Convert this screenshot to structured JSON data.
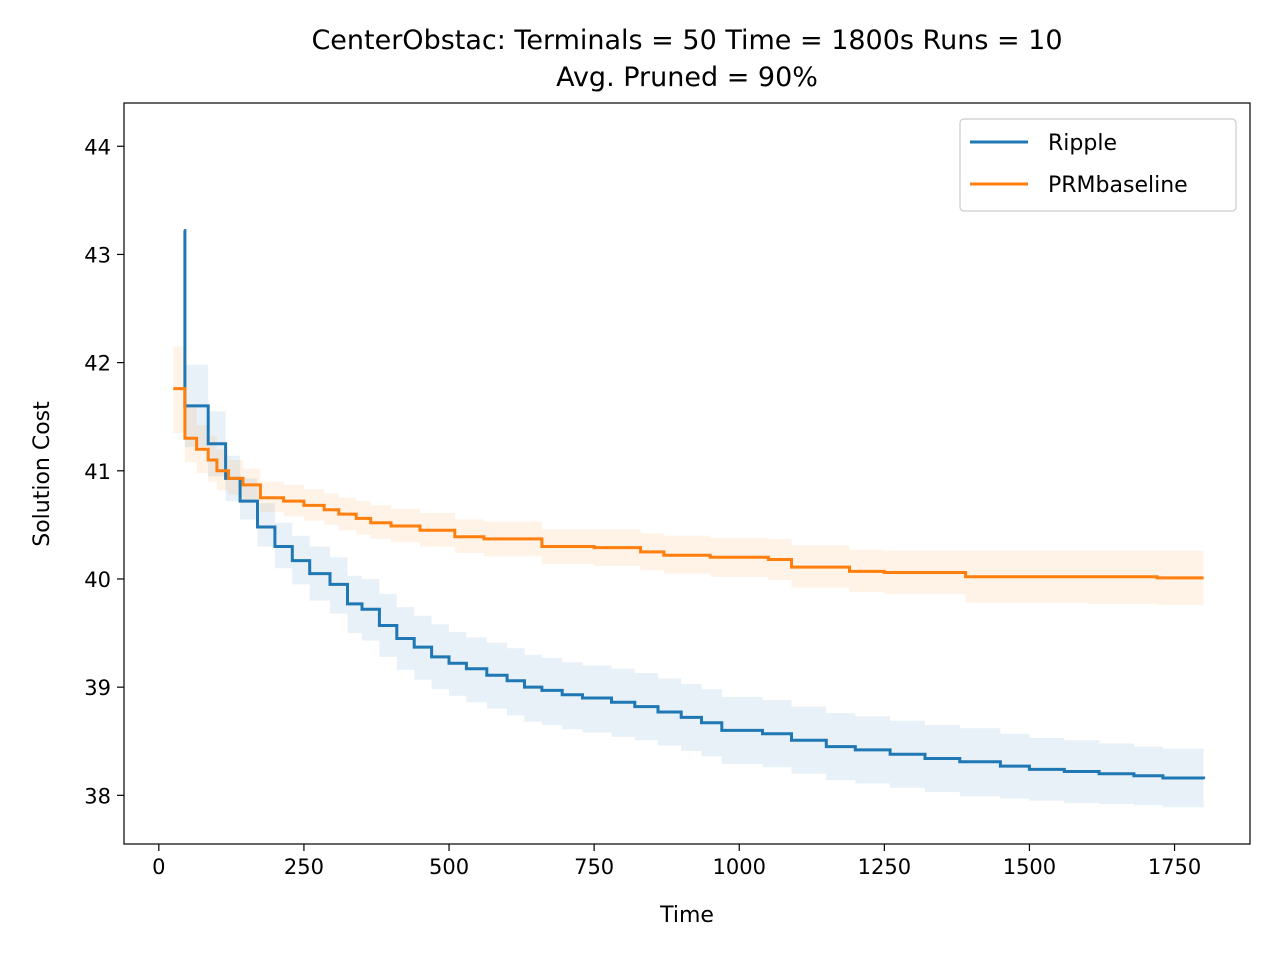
{
  "chart_data": {
    "type": "line",
    "title": "CenterObstac:  Terminals = 50  Time = 1800s  Runs = 10",
    "subtitle": "Avg. Pruned = 90%",
    "xlabel": "Time",
    "ylabel": "Solution Cost",
    "xlim": [
      -60,
      1880
    ],
    "ylim": [
      37.55,
      44.4
    ],
    "xticks": [
      0,
      250,
      500,
      750,
      1000,
      1250,
      1500,
      1750
    ],
    "yticks": [
      38,
      39,
      40,
      41,
      42,
      43,
      44
    ],
    "grid": false,
    "legend_position": "top-right",
    "step": true,
    "series": [
      {
        "name": "Ripple",
        "color": "#1f77b4",
        "band_color": "#1f77b4",
        "x": [
          43,
          45,
          85,
          115,
          140,
          170,
          200,
          230,
          260,
          295,
          325,
          350,
          380,
          410,
          440,
          470,
          500,
          530,
          565,
          600,
          630,
          660,
          695,
          730,
          780,
          820,
          860,
          900,
          935,
          970,
          1040,
          1090,
          1150,
          1200,
          1260,
          1320,
          1380,
          1450,
          1500,
          1560,
          1620,
          1680,
          1730,
          1800
        ],
        "y": [
          43.22,
          41.6,
          41.25,
          40.93,
          40.72,
          40.48,
          40.3,
          40.17,
          40.05,
          39.95,
          39.77,
          39.72,
          39.57,
          39.45,
          39.37,
          39.28,
          39.22,
          39.17,
          39.11,
          39.06,
          39.0,
          38.97,
          38.93,
          38.9,
          38.86,
          38.82,
          38.77,
          38.72,
          38.67,
          38.6,
          38.57,
          38.51,
          38.45,
          38.42,
          38.38,
          38.34,
          38.31,
          38.27,
          38.24,
          38.22,
          38.2,
          38.18,
          38.16,
          38.15
        ],
        "lower": [
          43.22,
          41.22,
          40.95,
          40.72,
          40.55,
          40.3,
          40.1,
          39.95,
          39.8,
          39.68,
          39.5,
          39.43,
          39.28,
          39.16,
          39.07,
          38.98,
          38.92,
          38.86,
          38.8,
          38.74,
          38.68,
          38.65,
          38.61,
          38.58,
          38.54,
          38.51,
          38.46,
          38.41,
          38.36,
          38.29,
          38.26,
          38.2,
          38.14,
          38.11,
          38.07,
          38.03,
          37.99,
          37.97,
          37.95,
          37.93,
          37.92,
          37.91,
          37.89,
          37.87
        ],
        "upper": [
          43.22,
          41.98,
          41.55,
          41.14,
          40.93,
          40.7,
          40.52,
          40.4,
          40.3,
          40.2,
          40.03,
          40.0,
          39.86,
          39.74,
          39.66,
          39.58,
          39.51,
          39.46,
          39.41,
          39.36,
          39.3,
          39.27,
          39.23,
          39.2,
          39.17,
          39.13,
          39.08,
          39.03,
          38.98,
          38.91,
          38.88,
          38.82,
          38.76,
          38.73,
          38.69,
          38.65,
          38.62,
          38.57,
          38.53,
          38.51,
          38.48,
          38.45,
          38.43,
          38.43
        ]
      },
      {
        "name": "PRMbaseline",
        "color": "#ff7f0e",
        "band_color": "#ff7f0e",
        "x": [
          25,
          45,
          65,
          85,
          100,
          120,
          145,
          175,
          215,
          250,
          285,
          310,
          340,
          365,
          400,
          450,
          510,
          560,
          660,
          750,
          780,
          830,
          870,
          950,
          1050,
          1090,
          1190,
          1250,
          1390,
          1500,
          1600,
          1720,
          1800
        ],
        "y": [
          41.76,
          41.3,
          41.2,
          41.1,
          41.0,
          40.93,
          40.87,
          40.75,
          40.72,
          40.68,
          40.64,
          40.6,
          40.56,
          40.52,
          40.49,
          40.45,
          40.39,
          40.37,
          40.3,
          40.29,
          40.29,
          40.25,
          40.22,
          40.2,
          40.18,
          40.11,
          40.07,
          40.06,
          40.02,
          40.02,
          40.02,
          40.01,
          40.01
        ],
        "lower": [
          41.35,
          41.08,
          40.98,
          40.9,
          40.82,
          40.78,
          40.72,
          40.62,
          40.58,
          40.54,
          40.5,
          40.45,
          40.41,
          40.37,
          40.34,
          40.3,
          40.24,
          40.21,
          40.14,
          40.12,
          40.12,
          40.08,
          40.05,
          40.02,
          39.99,
          39.92,
          39.88,
          39.86,
          39.78,
          39.78,
          39.77,
          39.76,
          39.76
        ],
        "upper": [
          42.15,
          41.6,
          41.42,
          41.32,
          41.2,
          41.1,
          41.02,
          40.9,
          40.87,
          40.83,
          40.79,
          40.75,
          40.72,
          40.68,
          40.65,
          40.61,
          40.55,
          40.53,
          40.46,
          40.46,
          40.46,
          40.42,
          40.4,
          40.38,
          40.37,
          40.31,
          40.27,
          40.26,
          40.26,
          40.26,
          40.26,
          40.26,
          40.26
        ]
      }
    ]
  }
}
